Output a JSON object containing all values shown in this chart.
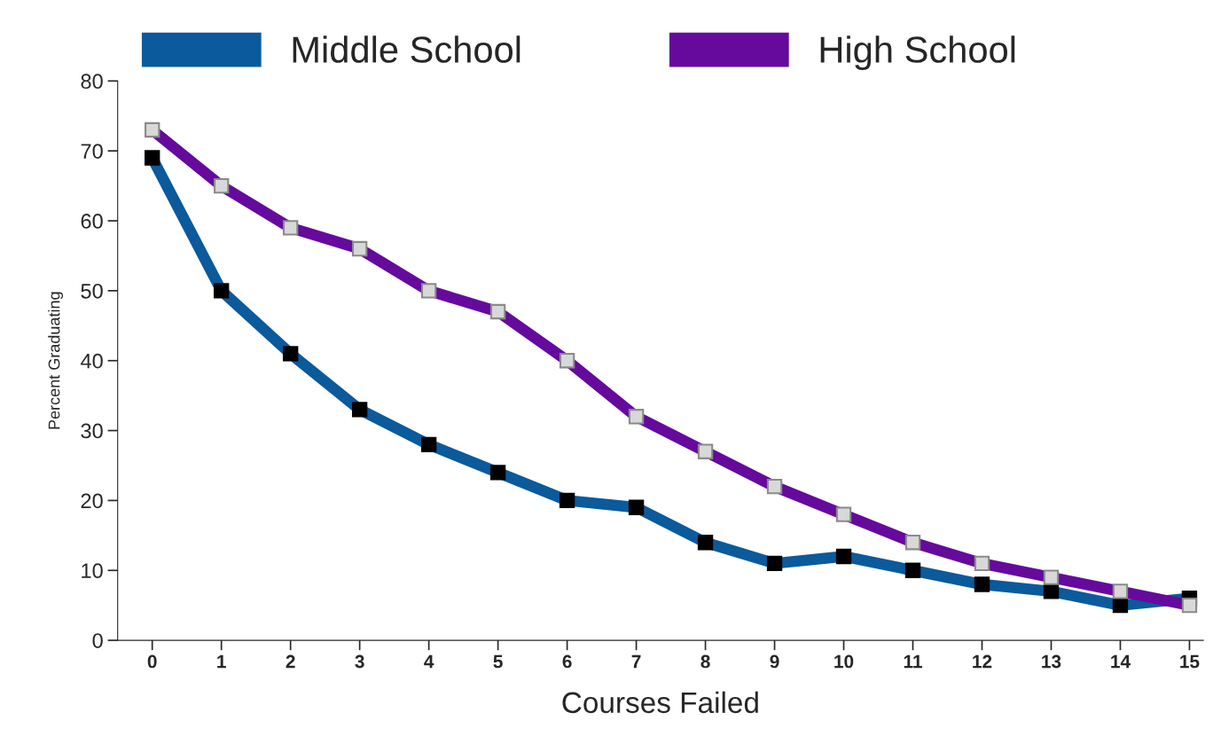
{
  "chart_data": {
    "type": "line",
    "xlabel": "Courses Failed",
    "ylabel": "Percent Graduating",
    "x": [
      0,
      1,
      2,
      3,
      4,
      5,
      6,
      7,
      8,
      9,
      10,
      11,
      12,
      13,
      14,
      15
    ],
    "series": [
      {
        "name": "Middle School",
        "color": "#0a5a9c",
        "values": [
          69,
          50,
          41,
          33,
          28,
          24,
          20,
          19,
          14,
          11,
          12,
          10,
          8,
          7,
          5,
          6
        ]
      },
      {
        "name": "High School",
        "color": "#650a9c",
        "values": [
          73,
          65,
          59,
          56,
          50,
          47,
          40,
          32,
          27,
          22,
          18,
          14,
          11,
          9,
          7,
          5
        ]
      }
    ],
    "xlim": [
      -0.5,
      15.2
    ],
    "xticks": [
      0,
      1,
      2,
      3,
      4,
      5,
      6,
      7,
      8,
      9,
      10,
      11,
      12,
      13,
      14,
      15
    ],
    "ylim": [
      0,
      80
    ],
    "yticks": [
      0,
      10,
      20,
      30,
      40,
      50,
      60,
      70,
      80
    ],
    "marker": "square",
    "line_style": "solid",
    "grid": false,
    "legend": "top"
  }
}
